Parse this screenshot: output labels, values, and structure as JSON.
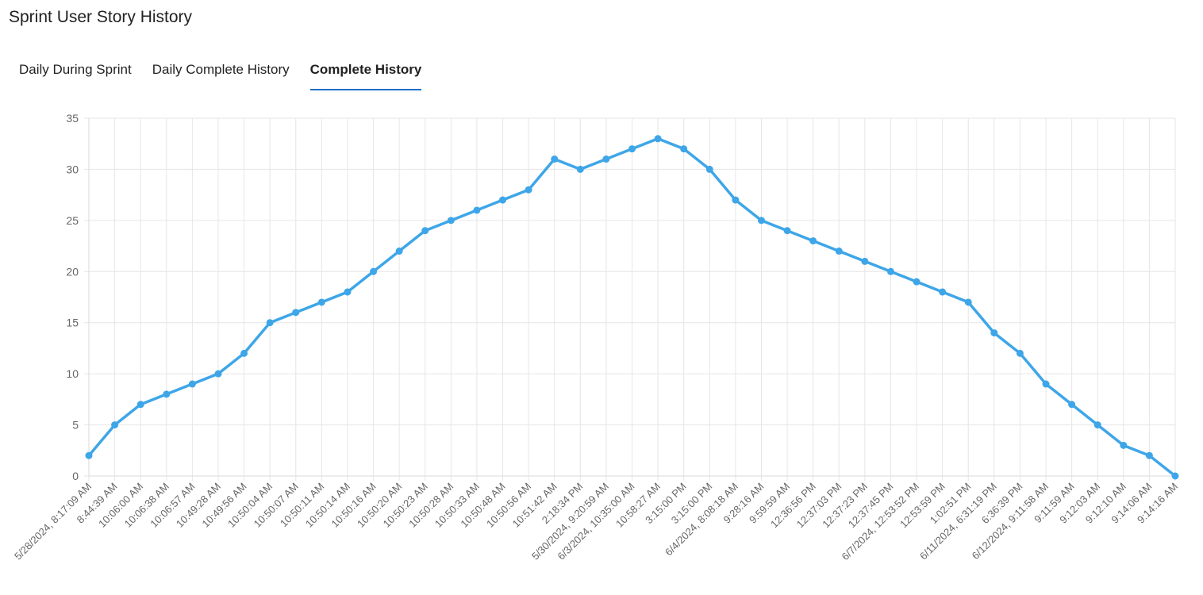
{
  "page_title": "Sprint User Story History",
  "tabs": [
    {
      "label": "Daily During Sprint",
      "active": false
    },
    {
      "label": "Daily Complete History",
      "active": false
    },
    {
      "label": "Complete History",
      "active": true
    }
  ],
  "colors": {
    "line": "#3ea6e8",
    "grid": "#e6e6e6",
    "tab_underline": "#1f6fc5"
  },
  "chart_data": {
    "type": "line",
    "ylim": [
      0,
      35
    ],
    "yticks": [
      0,
      5,
      10,
      15,
      20,
      25,
      30,
      35
    ],
    "grid": true,
    "categories": [
      "5/28/2024, 8:17:09 AM",
      "8:44:39 AM",
      "10:06:00 AM",
      "10:06:38 AM",
      "10:06:57 AM",
      "10:49:28 AM",
      "10:49:56 AM",
      "10:50:04 AM",
      "10:50:07 AM",
      "10:50:11 AM",
      "10:50:14 AM",
      "10:50:16 AM",
      "10:50:20 AM",
      "10:50:23 AM",
      "10:50:28 AM",
      "10:50:33 AM",
      "10:50:48 AM",
      "10:50:56 AM",
      "10:51:42 AM",
      "2:18:34 PM",
      "5/30/2024, 9:20:59 AM",
      "6/3/2024, 10:35:00 AM",
      "10:58:27 AM",
      "3:15:00 PM",
      "3:15:00 PM",
      "6/4/2024, 8:08:18 AM",
      "9:28:16 AM",
      "9:59:59 AM",
      "12:36:56 PM",
      "12:37:03 PM",
      "12:37:23 PM",
      "12:37:45 PM",
      "6/7/2024, 12:53:52 PM",
      "12:53:59 PM",
      "1:02:51 PM",
      "6/11/2024, 6:31:19 PM",
      "6:36:39 PM",
      "6/12/2024, 9:11:58 AM",
      "9:11:59 AM",
      "9:12:03 AM",
      "9:12:10 AM",
      "9:14:06 AM",
      "9:14:16 AM"
    ],
    "series": [
      {
        "values": [
          2,
          5,
          7,
          8,
          9,
          10,
          12,
          15,
          16,
          17,
          18,
          20,
          22,
          24,
          25,
          26,
          27,
          28,
          31,
          30,
          31,
          32,
          33,
          32,
          30,
          27,
          25,
          24,
          23,
          22,
          21,
          20,
          19,
          18,
          17,
          14,
          12,
          9,
          7,
          5,
          3,
          2,
          0
        ]
      }
    ]
  }
}
